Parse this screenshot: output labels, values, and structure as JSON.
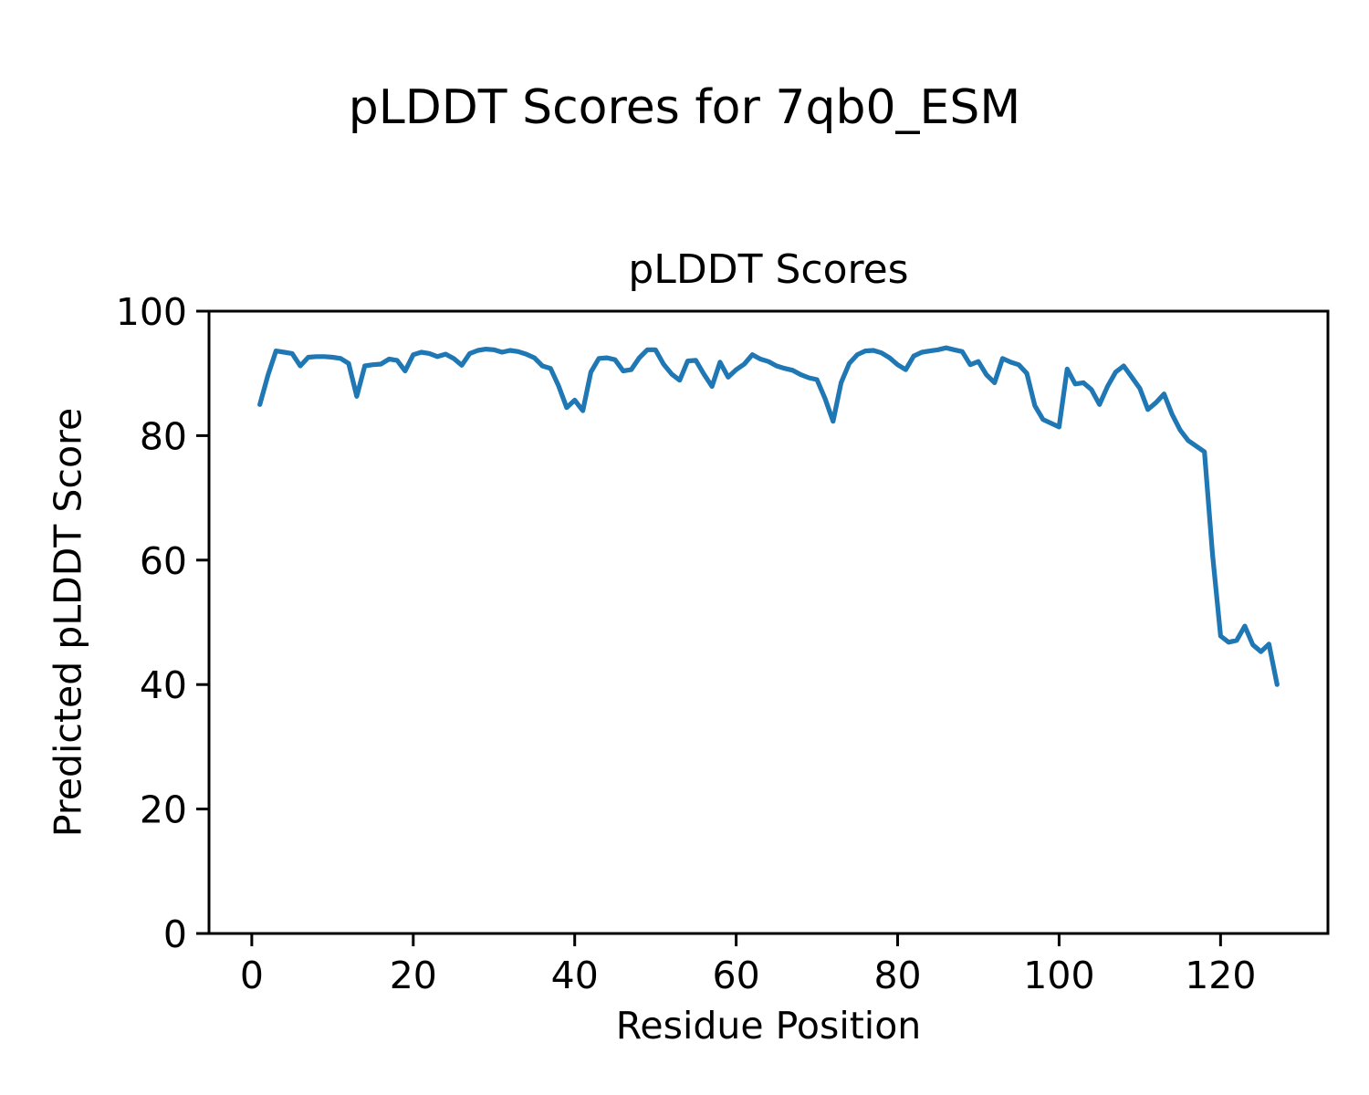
{
  "figure": {
    "suptitle": "pLDDT Scores for 7qb0_ESM"
  },
  "chart_data": {
    "type": "line",
    "title": "pLDDT Scores",
    "xlabel": "Residue Position",
    "ylabel": "Predicted pLDDT Score",
    "x_description": "residue index, starting at 1 with step 1",
    "x_start": 1,
    "x_step": 1,
    "values": [
      85.0,
      89.7,
      93.6,
      93.4,
      93.2,
      91.2,
      92.6,
      92.7,
      92.7,
      92.6,
      92.4,
      91.6,
      86.3,
      91.2,
      91.4,
      91.5,
      92.3,
      92.1,
      90.4,
      93.0,
      93.4,
      93.2,
      92.7,
      93.1,
      92.4,
      91.3,
      93.2,
      93.7,
      93.9,
      93.8,
      93.4,
      93.7,
      93.5,
      93.1,
      92.5,
      91.2,
      90.8,
      88.0,
      84.5,
      85.7,
      84.0,
      90.2,
      92.4,
      92.5,
      92.2,
      90.4,
      90.6,
      92.5,
      93.8,
      93.8,
      91.5,
      89.9,
      88.9,
      92.0,
      92.1,
      89.9,
      87.9,
      91.8,
      89.4,
      90.6,
      91.5,
      93.0,
      92.3,
      91.9,
      91.2,
      90.8,
      90.5,
      89.8,
      89.3,
      89.0,
      86.0,
      82.3,
      88.5,
      91.6,
      93.0,
      93.6,
      93.7,
      93.3,
      92.5,
      91.4,
      90.6,
      92.8,
      93.4,
      93.6,
      93.8,
      94.1,
      93.8,
      93.5,
      91.4,
      91.9,
      89.8,
      88.5,
      92.4,
      91.8,
      91.4,
      90.0,
      84.8,
      82.6,
      82.0,
      81.4,
      90.7,
      88.3,
      88.5,
      87.4,
      85.0,
      87.9,
      90.2,
      91.2,
      89.4,
      87.6,
      84.2,
      85.3,
      86.7,
      83.4,
      80.9,
      79.2,
      78.3,
      77.4,
      61.0,
      47.8,
      46.8,
      47.1,
      49.4,
      46.4,
      45.3,
      46.5,
      40.0
    ],
    "xlim": [
      -5.3,
      133.3
    ],
    "ylim": [
      0,
      100
    ],
    "xticks": [
      0,
      20,
      40,
      60,
      80,
      100,
      120
    ],
    "yticks": [
      0,
      20,
      40,
      60,
      80,
      100
    ],
    "line_color": "#1f77b4",
    "line_width": 5.2,
    "grid": false,
    "legend": "none"
  }
}
